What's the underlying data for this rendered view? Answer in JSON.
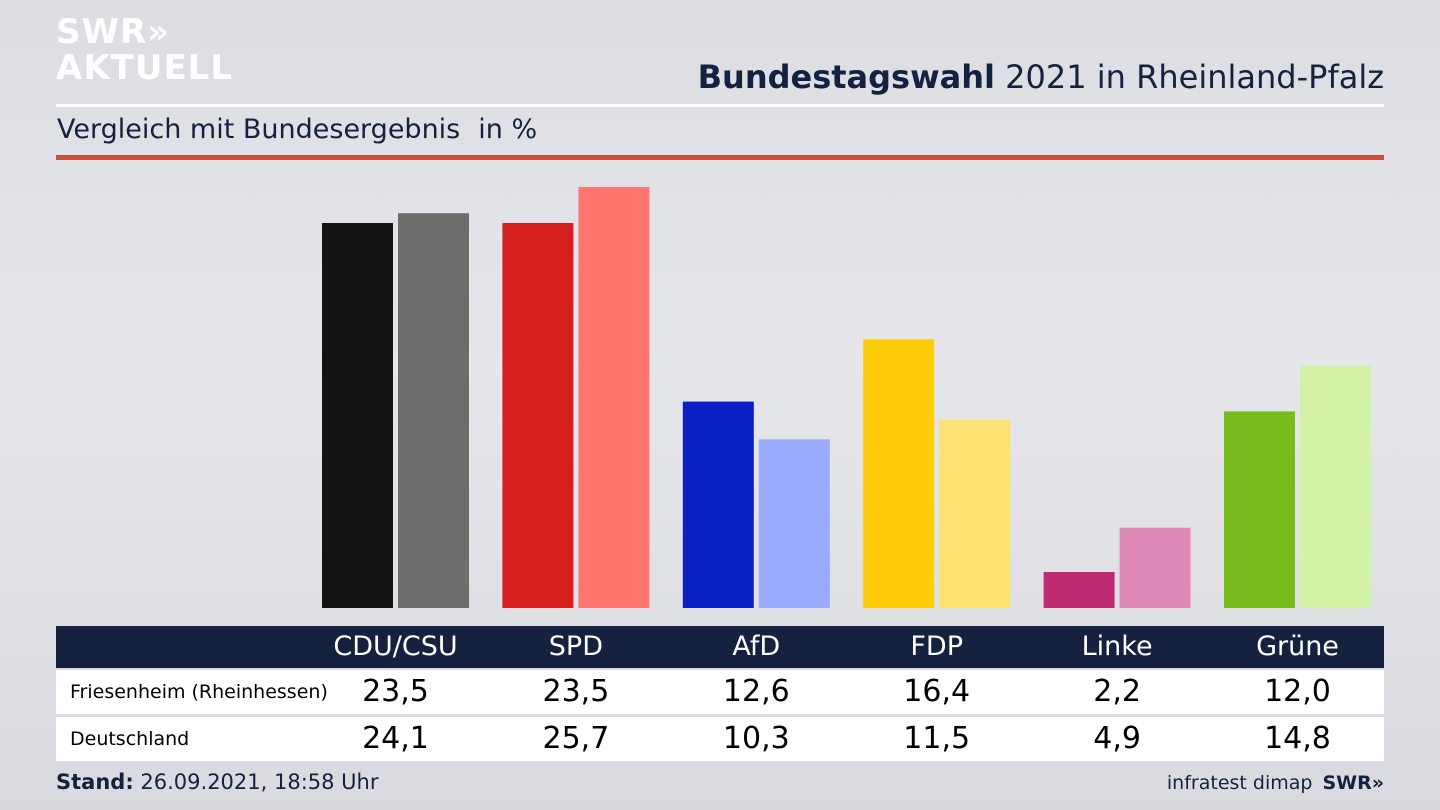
{
  "brand": {
    "line1": "SWR»",
    "line2": "AKTUELL",
    "footer_logo": "SWR»"
  },
  "header": {
    "title_bold": "Bundestagswahl",
    "title_rest": " 2021 in Rheinland-Pfalz",
    "subtitle": "Vergleich mit Bundesergebnis",
    "unit": "in %"
  },
  "footer": {
    "stand_label": "Stand:",
    "stand_value": " 26.09.2021, 18:58 Uhr",
    "source": "infratest dimap"
  },
  "table": {
    "rows": [
      "Friesenheim (Rheinhessen)",
      "Deutschland"
    ]
  },
  "chart_data": {
    "type": "bar",
    "categories": [
      "CDU/CSU",
      "SPD",
      "AfD",
      "FDP",
      "Linke",
      "Grüne"
    ],
    "series": [
      {
        "name": "Friesenheim (Rheinhessen)",
        "values": [
          23.5,
          23.5,
          12.6,
          16.4,
          2.2,
          12.0
        ],
        "labels": [
          "23,5",
          "23,5",
          "12,6",
          "16,4",
          "2,2",
          "12,0"
        ],
        "colors": [
          "#141414",
          "#d51f1f",
          "#0a1fc4",
          "#ffcc0a",
          "#be2b74",
          "#77bb1c"
        ]
      },
      {
        "name": "Deutschland",
        "values": [
          24.1,
          25.7,
          10.3,
          11.5,
          4.9,
          14.8
        ],
        "labels": [
          "24,1",
          "25,7",
          "10,3",
          "11,5",
          "4,9",
          "14,8"
        ],
        "colors": [
          "#6e6d6b",
          "#ff7670",
          "#9aaafc",
          "#fde172",
          "#df89b7",
          "#d2f2a6"
        ]
      }
    ],
    "ylim": [
      0,
      25.7
    ]
  }
}
